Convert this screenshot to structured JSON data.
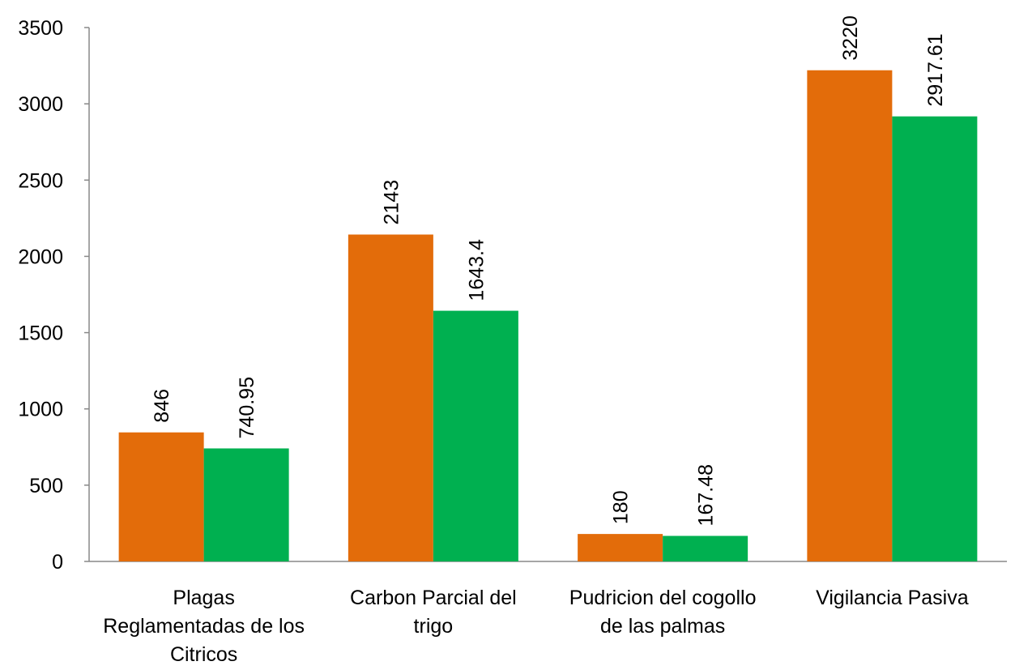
{
  "chart_data": {
    "type": "bar",
    "title": "",
    "xlabel": "",
    "ylabel": "",
    "ylim": [
      0,
      3500
    ],
    "yticks": [
      0,
      500,
      1000,
      1500,
      2000,
      2500,
      3000,
      3500
    ],
    "grid": false,
    "legend": "none",
    "categories": [
      [
        "Plagas",
        "Reglamentadas de los",
        "Citricos"
      ],
      [
        "Carbon Parcial del",
        "trigo"
      ],
      [
        "Pudricion del cogollo",
        "de las palmas"
      ],
      [
        "Vigilancia Pasiva"
      ]
    ],
    "series": [
      {
        "color": "#E36C0A",
        "values": [
          846,
          2143,
          180,
          3220
        ],
        "labels": [
          "846",
          "2143",
          "180",
          "3220"
        ]
      },
      {
        "color": "#00B050",
        "values": [
          740.95,
          1643.4,
          167.48,
          2917.61
        ],
        "labels": [
          "740.95",
          "1643.4",
          "167.48",
          "2917.61"
        ]
      }
    ]
  }
}
